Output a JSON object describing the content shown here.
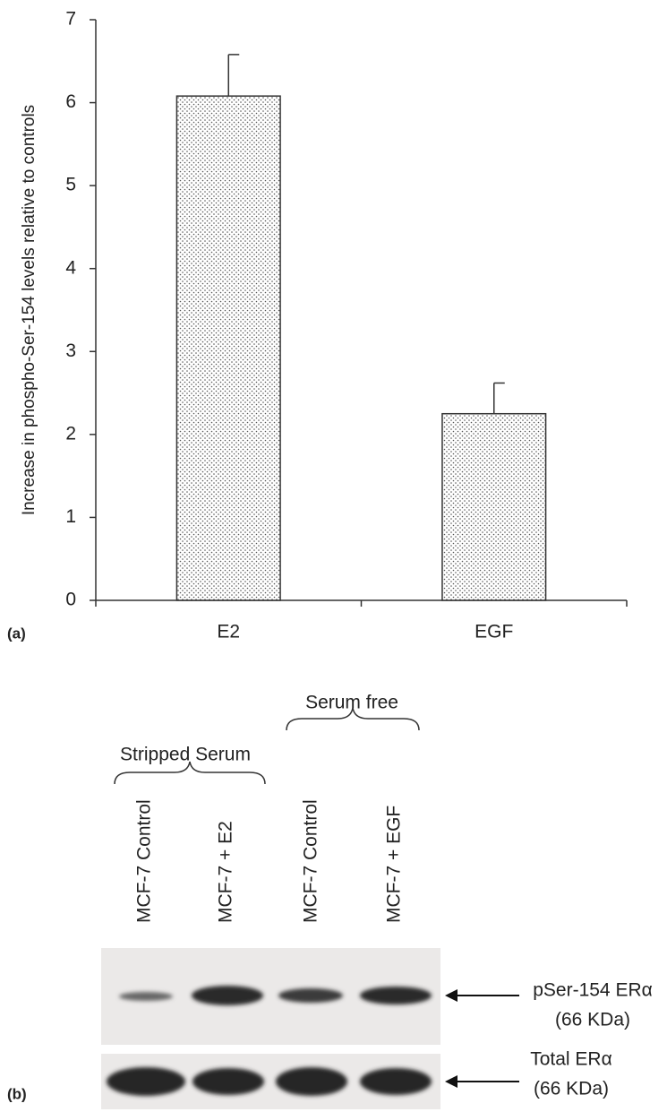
{
  "chart_data": {
    "type": "bar",
    "y_label": "Increase in phospho-Ser-154 levels relative to controls",
    "categories": [
      "E2",
      "EGF"
    ],
    "values": [
      6.08,
      2.25
    ],
    "errors": [
      0.5,
      0.37
    ],
    "ylim": [
      0,
      7
    ],
    "yticks": [
      0,
      1,
      2,
      3,
      4,
      5,
      6,
      7
    ],
    "color": "#333333"
  },
  "panel_labels": [
    "(a)",
    "(b)"
  ],
  "blot": {
    "groups": [
      "Stripped Serum",
      "Serum free"
    ],
    "lanes": [
      "MCF-7 Control",
      "MCF-7 + E2",
      "MCF-7 Control",
      "MCF-7 + EGF"
    ],
    "rows": [
      {
        "label": "pSer-154 ERα",
        "size": "(66 KDa)"
      },
      {
        "label": "Total ERα",
        "size": "(66 KDa)"
      }
    ]
  }
}
